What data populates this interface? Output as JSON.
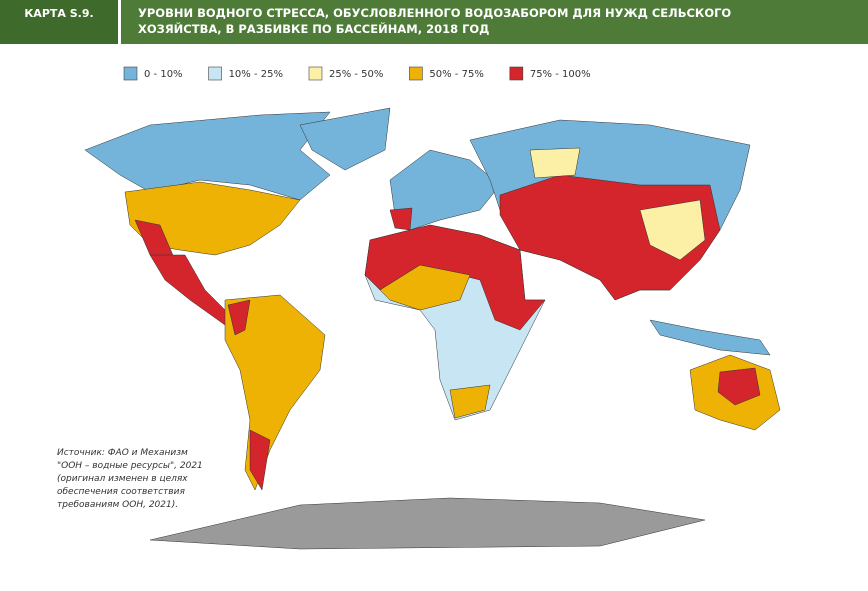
{
  "header": {
    "label": "КАРТА S.9.",
    "title_lines": [
      "УРОВНИ ВОДНОГО СТРЕССА, ОБУСЛОВЛЕННОГО ВОДОЗАБОРОМ ДЛЯ НУЖД СЕЛЬСКОГО",
      "ХОЗЯЙСТВА, В РАЗБИВКЕ ПО БАССЕЙНАМ, 2018 ГОД"
    ]
  },
  "legend": [
    {
      "label": "0 - 10%",
      "color": "#74b3da"
    },
    {
      "label": "10% - 25%",
      "color": "#c8e5f4"
    },
    {
      "label": "25% - 50%",
      "color": "#fbf0a6"
    },
    {
      "label": "50% - 75%",
      "color": "#eeb204"
    },
    {
      "label": "75% - 100%",
      "color": "#d3252b"
    }
  ],
  "source_lines": [
    "Источник: ФАО и Механизм",
    "\"ООН – водные ресурсы\", 2021",
    "(оригинал изменен в целях",
    "обеспечения соответствия",
    "требованиям ООН, 2021)."
  ]
}
